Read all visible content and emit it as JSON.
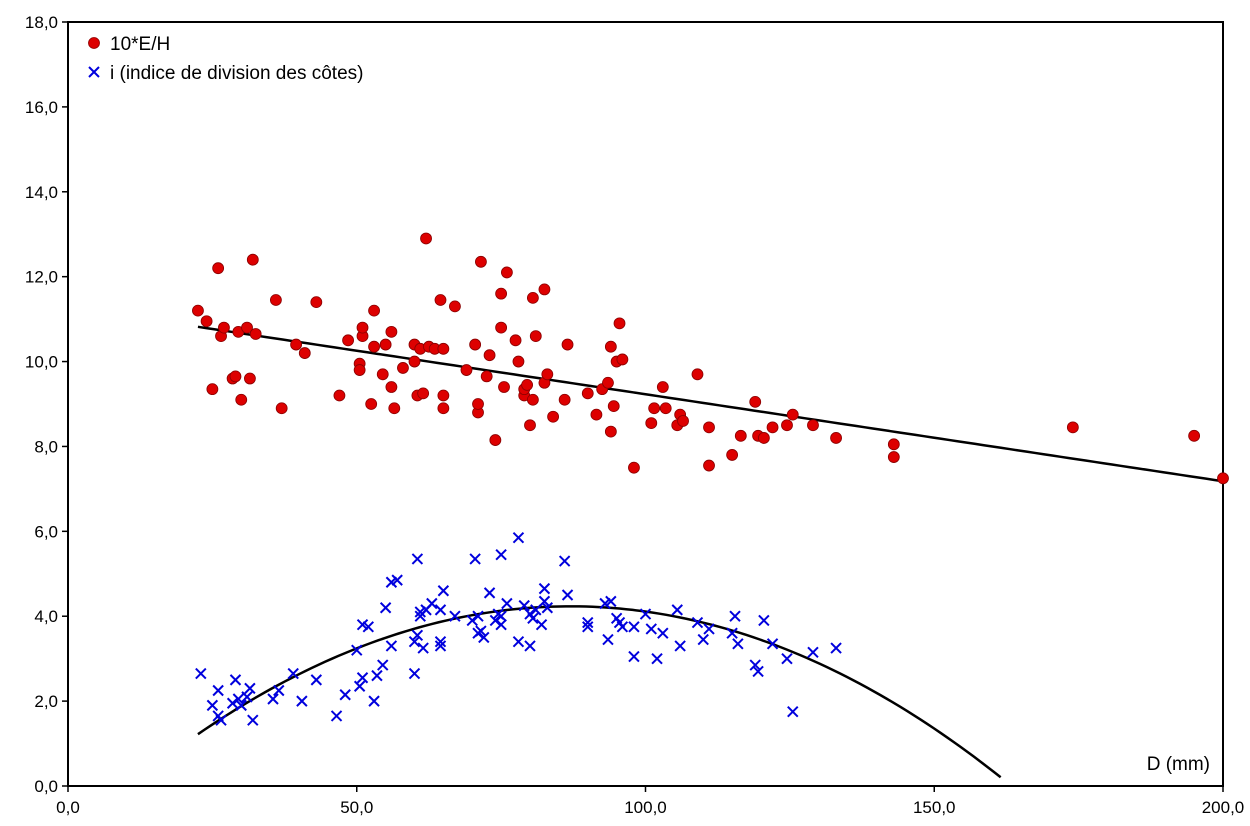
{
  "chart_data": {
    "type": "scatter",
    "title": "",
    "xlabel": "D (mm)",
    "ylabel": "",
    "xlim": [
      0,
      200
    ],
    "ylim": [
      0,
      18
    ],
    "x_ticks": [
      "0,0",
      "50,0",
      "100,0",
      "150,0",
      "200,0"
    ],
    "x_tick_values": [
      0,
      50,
      100,
      150,
      200
    ],
    "y_ticks": [
      "0,0",
      "2,0",
      "4,0",
      "6,0",
      "8,0",
      "10,0",
      "12,0",
      "14,0",
      "16,0",
      "18,0"
    ],
    "y_tick_values": [
      0,
      2,
      4,
      6,
      8,
      10,
      12,
      14,
      16,
      18
    ],
    "grid": false,
    "legend_position": "top-left",
    "series": [
      {
        "name": "10*E/H",
        "marker": "circle",
        "color": "#dd0000",
        "points": [
          [
            22.5,
            11.2
          ],
          [
            24,
            10.95
          ],
          [
            25,
            9.35
          ],
          [
            26,
            12.2
          ],
          [
            26.5,
            10.6
          ],
          [
            27,
            10.8
          ],
          [
            28.5,
            9.6
          ],
          [
            29,
            9.65
          ],
          [
            29.5,
            10.7
          ],
          [
            30,
            9.1
          ],
          [
            31,
            10.8
          ],
          [
            31.5,
            9.6
          ],
          [
            32,
            12.4
          ],
          [
            32.5,
            10.65
          ],
          [
            36,
            11.45
          ],
          [
            37,
            8.9
          ],
          [
            39.5,
            10.4
          ],
          [
            41,
            10.2
          ],
          [
            43,
            11.4
          ],
          [
            47,
            9.2
          ],
          [
            48.5,
            10.5
          ],
          [
            50.5,
            9.95
          ],
          [
            50.5,
            9.8
          ],
          [
            51,
            10.6
          ],
          [
            51,
            10.8
          ],
          [
            52.5,
            9.0
          ],
          [
            53,
            10.35
          ],
          [
            53,
            11.2
          ],
          [
            54.5,
            9.7
          ],
          [
            55,
            10.4
          ],
          [
            56,
            10.7
          ],
          [
            56,
            9.4
          ],
          [
            56.5,
            8.9
          ],
          [
            58,
            9.85
          ],
          [
            60,
            10.4
          ],
          [
            60,
            10.0
          ],
          [
            60.5,
            9.2
          ],
          [
            61,
            10.3
          ],
          [
            61.5,
            9.25
          ],
          [
            62,
            12.9
          ],
          [
            62.5,
            10.35
          ],
          [
            63.5,
            10.3
          ],
          [
            64.5,
            11.45
          ],
          [
            65,
            10.3
          ],
          [
            65,
            9.2
          ],
          [
            65,
            8.9
          ],
          [
            67,
            11.3
          ],
          [
            69,
            9.8
          ],
          [
            70.5,
            10.4
          ],
          [
            71,
            8.8
          ],
          [
            71,
            9.0
          ],
          [
            71.5,
            12.35
          ],
          [
            72.5,
            9.65
          ],
          [
            73,
            10.15
          ],
          [
            74,
            8.15
          ],
          [
            75,
            10.8
          ],
          [
            75,
            11.6
          ],
          [
            75.5,
            9.4
          ],
          [
            76,
            12.1
          ],
          [
            77.5,
            10.5
          ],
          [
            78,
            10.0
          ],
          [
            79,
            9.2
          ],
          [
            79,
            9.35
          ],
          [
            79.5,
            9.45
          ],
          [
            80,
            8.5
          ],
          [
            80.5,
            11.5
          ],
          [
            80.5,
            9.1
          ],
          [
            81,
            10.6
          ],
          [
            82.5,
            9.5
          ],
          [
            82.5,
            11.7
          ],
          [
            83,
            9.7
          ],
          [
            84,
            8.7
          ],
          [
            86,
            9.1
          ],
          [
            86.5,
            10.4
          ],
          [
            90,
            9.25
          ],
          [
            91.5,
            8.75
          ],
          [
            92.5,
            9.35
          ],
          [
            93.5,
            9.5
          ],
          [
            94,
            10.35
          ],
          [
            94,
            8.35
          ],
          [
            94.5,
            8.95
          ],
          [
            95,
            10.0
          ],
          [
            95.5,
            10.9
          ],
          [
            96,
            10.05
          ],
          [
            98,
            7.5
          ],
          [
            101,
            8.55
          ],
          [
            101.5,
            8.9
          ],
          [
            103,
            9.4
          ],
          [
            103.5,
            8.9
          ],
          [
            105.5,
            8.5
          ],
          [
            106,
            8.75
          ],
          [
            106.5,
            8.6
          ],
          [
            109,
            9.7
          ],
          [
            111,
            7.55
          ],
          [
            111,
            8.45
          ],
          [
            115,
            7.8
          ],
          [
            116.5,
            8.25
          ],
          [
            119,
            9.05
          ],
          [
            119.5,
            8.25
          ],
          [
            120.5,
            8.2
          ],
          [
            122,
            8.45
          ],
          [
            124.5,
            8.5
          ],
          [
            125.5,
            8.75
          ],
          [
            129,
            8.5
          ],
          [
            133,
            8.2
          ],
          [
            143,
            8.05
          ],
          [
            143,
            7.75
          ],
          [
            174,
            8.45
          ],
          [
            195,
            8.25
          ],
          [
            200,
            7.25
          ]
        ]
      },
      {
        "name": "i (indice de division des côtes)",
        "marker": "x",
        "color": "#0000dd",
        "points": [
          [
            23,
            2.65
          ],
          [
            25,
            1.9
          ],
          [
            26,
            1.65
          ],
          [
            26,
            2.25
          ],
          [
            26.5,
            1.55
          ],
          [
            28.5,
            1.95
          ],
          [
            29,
            2.5
          ],
          [
            29.5,
            2.05
          ],
          [
            30,
            1.9
          ],
          [
            31,
            2.1
          ],
          [
            31.5,
            2.3
          ],
          [
            32,
            1.55
          ],
          [
            35.5,
            2.05
          ],
          [
            36.5,
            2.25
          ],
          [
            39,
            2.65
          ],
          [
            40.5,
            2.0
          ],
          [
            43,
            2.5
          ],
          [
            46.5,
            1.65
          ],
          [
            48,
            2.15
          ],
          [
            50,
            3.2
          ],
          [
            50.5,
            2.35
          ],
          [
            51,
            2.55
          ],
          [
            51,
            3.8
          ],
          [
            52,
            3.75
          ],
          [
            53,
            2.0
          ],
          [
            53.5,
            2.6
          ],
          [
            54.5,
            2.85
          ],
          [
            55,
            4.2
          ],
          [
            56,
            4.8
          ],
          [
            56,
            3.3
          ],
          [
            57,
            4.85
          ],
          [
            60,
            2.65
          ],
          [
            60,
            3.4
          ],
          [
            60.5,
            3.55
          ],
          [
            60.5,
            5.35
          ],
          [
            61,
            4.1
          ],
          [
            61,
            4.0
          ],
          [
            61.5,
            3.25
          ],
          [
            62,
            4.15
          ],
          [
            63,
            4.3
          ],
          [
            64.5,
            3.4
          ],
          [
            64.5,
            3.3
          ],
          [
            64.5,
            4.15
          ],
          [
            65,
            4.6
          ],
          [
            67,
            4.0
          ],
          [
            70,
            3.9
          ],
          [
            70.5,
            5.35
          ],
          [
            71,
            3.6
          ],
          [
            71,
            4.0
          ],
          [
            71.5,
            3.65
          ],
          [
            72,
            3.5
          ],
          [
            73,
            4.55
          ],
          [
            74,
            3.9
          ],
          [
            74.5,
            4.05
          ],
          [
            75,
            4.0
          ],
          [
            75,
            5.45
          ],
          [
            75,
            3.8
          ],
          [
            76,
            4.3
          ],
          [
            78,
            5.85
          ],
          [
            78,
            3.4
          ],
          [
            79,
            4.25
          ],
          [
            80,
            4.05
          ],
          [
            80,
            3.3
          ],
          [
            80.5,
            3.95
          ],
          [
            81,
            4.15
          ],
          [
            82,
            3.8
          ],
          [
            82.5,
            4.35
          ],
          [
            82.5,
            4.65
          ],
          [
            83,
            4.2
          ],
          [
            86,
            5.3
          ],
          [
            86.5,
            4.5
          ],
          [
            90,
            3.75
          ],
          [
            90,
            3.85
          ],
          [
            93,
            4.3
          ],
          [
            93.5,
            3.45
          ],
          [
            94,
            4.35
          ],
          [
            95,
            3.95
          ],
          [
            95.5,
            3.85
          ],
          [
            96,
            3.75
          ],
          [
            98,
            3.75
          ],
          [
            98,
            3.05
          ],
          [
            100,
            4.05
          ],
          [
            101,
            3.7
          ],
          [
            102,
            3.0
          ],
          [
            103,
            3.6
          ],
          [
            105.5,
            4.15
          ],
          [
            106,
            3.3
          ],
          [
            109,
            3.85
          ],
          [
            110,
            3.45
          ],
          [
            111,
            3.7
          ],
          [
            115,
            3.6
          ],
          [
            115.5,
            4.0
          ],
          [
            116,
            3.35
          ],
          [
            119,
            2.85
          ],
          [
            119.5,
            2.7
          ],
          [
            120.5,
            3.9
          ],
          [
            122,
            3.35
          ],
          [
            124.5,
            3.0
          ],
          [
            125.5,
            1.75
          ],
          [
            129,
            3.15
          ],
          [
            133,
            3.25
          ]
        ]
      }
    ],
    "trendlines": [
      {
        "series": "10*E/H",
        "type": "linear",
        "x_range": [
          22.5,
          200
        ],
        "coef": [
          11.28,
          -0.0205
        ]
      },
      {
        "series": "i (indice de division des côtes)",
        "type": "quadratic",
        "x_range": [
          22.5,
          161.5
        ],
        "coef": [
          -1.25,
          0.1261,
          -0.000725
        ]
      }
    ]
  }
}
